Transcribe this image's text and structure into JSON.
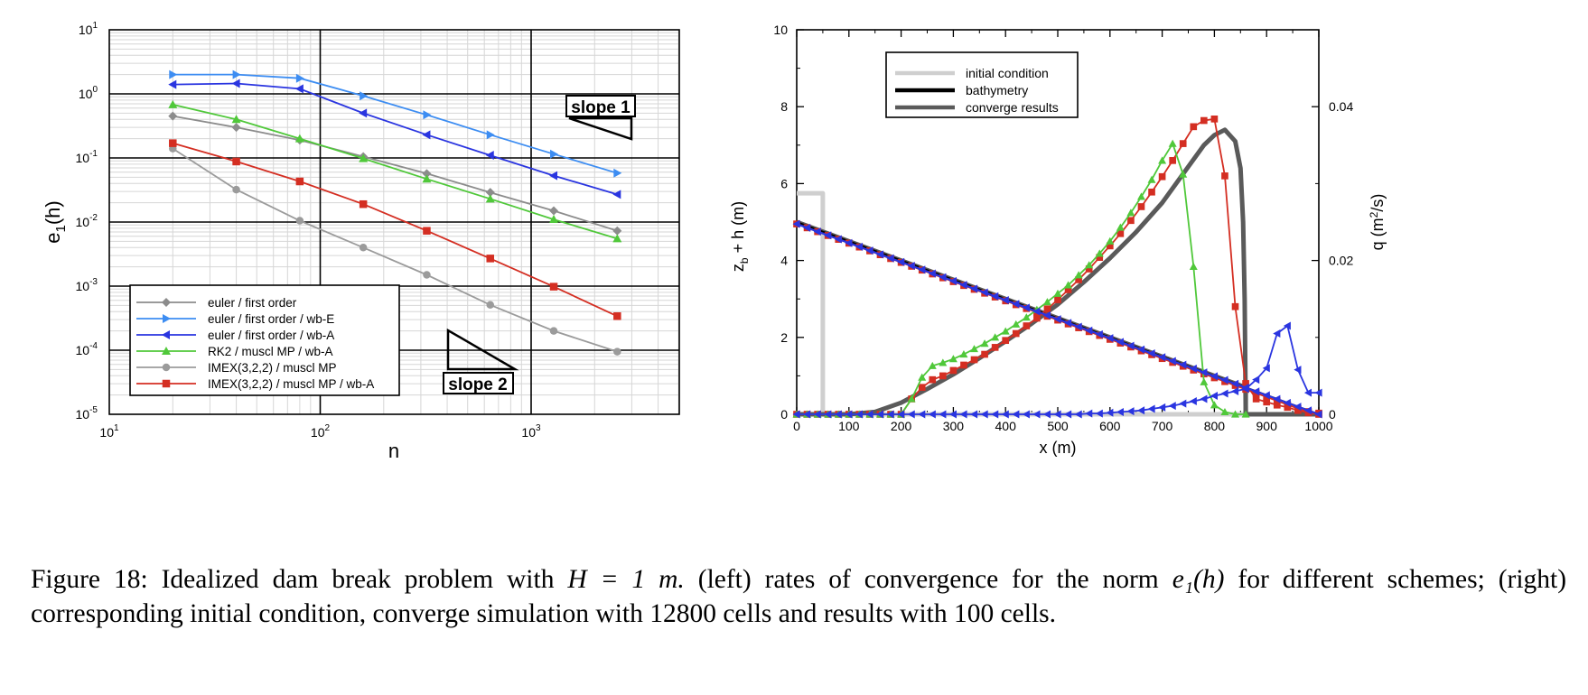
{
  "chart_data": [
    {
      "type": "line",
      "title": "",
      "xlabel": "n",
      "ylabel": "e1(h)",
      "xscale": "log",
      "yscale": "log",
      "xlim": [
        10,
        5000
      ],
      "ylim": [
        1e-05,
        10
      ],
      "x_ticks": [
        {
          "base": "10",
          "exp": "1"
        },
        {
          "base": "10",
          "exp": "2"
        },
        {
          "base": "10",
          "exp": "3"
        }
      ],
      "y_ticks": [
        {
          "base": "10",
          "exp": "1"
        },
        {
          "base": "10",
          "exp": "0"
        },
        {
          "base": "10",
          "exp": "-1"
        },
        {
          "base": "10",
          "exp": "-2"
        },
        {
          "base": "10",
          "exp": "-3"
        },
        {
          "base": "10",
          "exp": "-4"
        },
        {
          "base": "10",
          "exp": "-5"
        }
      ],
      "grid": true,
      "legend_position": "lower-left",
      "annotations": [
        "slope 1",
        "slope 2"
      ],
      "x": [
        20,
        40,
        80,
        160,
        320,
        640,
        1280,
        2560
      ],
      "series": [
        {
          "name": "euler / first order",
          "color": "#8c8c8c",
          "marker": "diamond",
          "values": [
            0.45,
            0.3,
            0.19,
            0.105,
            0.057,
            0.029,
            0.015,
            0.0073
          ]
        },
        {
          "name": "euler / first order / wb-E",
          "color": "#3d8df2",
          "marker": "triangle-right",
          "values": [
            2.0,
            2.0,
            1.75,
            0.93,
            0.47,
            0.23,
            0.115,
            0.058
          ]
        },
        {
          "name": "euler / first order / wb-A",
          "color": "#2a35e0",
          "marker": "triangle-left",
          "values": [
            1.4,
            1.45,
            1.2,
            0.5,
            0.23,
            0.11,
            0.053,
            0.027
          ]
        },
        {
          "name": "RK2 / muscl MP / wb-A",
          "color": "#50c83a",
          "marker": "triangle-up",
          "values": [
            0.68,
            0.4,
            0.2,
            0.098,
            0.047,
            0.023,
            0.011,
            0.0055
          ]
        },
        {
          "name": "IMEX(3,2,2) / muscl MP",
          "color": "#9b9b9b",
          "marker": "circle",
          "values": [
            0.14,
            0.032,
            0.0105,
            0.004,
            0.0015,
            0.00051,
            0.0002,
            9.5e-05
          ]
        },
        {
          "name": "IMEX(3,2,2) / muscl MP / wb-A",
          "color": "#d42e22",
          "marker": "square",
          "values": [
            0.17,
            0.088,
            0.043,
            0.019,
            0.0073,
            0.0027,
            0.00098,
            0.00034
          ]
        }
      ]
    },
    {
      "type": "line",
      "title": "",
      "xlabel": "x (m)",
      "ylabel": "zb + h (m)",
      "y2label": "q (m2/s)",
      "xlim": [
        0,
        1000
      ],
      "ylim": [
        0,
        10
      ],
      "y2lim": [
        0,
        0.05
      ],
      "x_ticks": [
        "0",
        "100",
        "200",
        "300",
        "400",
        "500",
        "600",
        "700",
        "800",
        "900",
        "1000"
      ],
      "y_ticks": [
        "0",
        "2",
        "4",
        "6",
        "8",
        "10"
      ],
      "y2_ticks": [
        "0",
        "0.02",
        "0.04"
      ],
      "grid": false,
      "legend_position": "top-left",
      "series": [
        {
          "name": "initial condition",
          "color": "#cfcfcf",
          "axis": "left",
          "x": [
            0,
            50,
            50,
            1000
          ],
          "y": [
            5.75,
            5.75,
            0,
            0
          ]
        },
        {
          "name": "bathymetry",
          "color": "#000000",
          "axis": "left",
          "x": [
            0,
            1000
          ],
          "y": [
            5.0,
            0
          ]
        },
        {
          "name": "converge results",
          "color": "#5a5a5a",
          "axis": "left",
          "x": [
            0,
            860,
            860,
            1000
          ],
          "y": [
            5.0,
            0.7,
            0,
            0
          ]
        },
        {
          "name": "converge results",
          "color": "#5a5a5a",
          "axis": "right",
          "x": [
            0,
            100,
            150,
            200,
            250,
            300,
            350,
            400,
            450,
            500,
            550,
            600,
            650,
            700,
            750,
            780,
            800,
            820,
            840,
            850,
            855,
            858,
            860,
            1000
          ],
          "y": [
            0,
            0,
            0.0003,
            0.0015,
            0.0033,
            0.0052,
            0.0073,
            0.0095,
            0.0118,
            0.0143,
            0.0172,
            0.0203,
            0.0237,
            0.0275,
            0.0322,
            0.035,
            0.0363,
            0.037,
            0.0355,
            0.032,
            0.025,
            0.015,
            0,
            0
          ]
        },
        {
          "name": "IMEX(3,2,2) / muscl MP / wb-A",
          "color": "#d42e22",
          "axis": "right",
          "marker": "square",
          "x": [
            0,
            20,
            40,
            60,
            80,
            100,
            120,
            140,
            160,
            180,
            200,
            220,
            240,
            260,
            280,
            300,
            320,
            340,
            360,
            380,
            400,
            420,
            440,
            460,
            480,
            500,
            520,
            540,
            560,
            580,
            600,
            620,
            640,
            660,
            680,
            700,
            720,
            740,
            760,
            780,
            800,
            820,
            840,
            860,
            880,
            900,
            920,
            940,
            960,
            980,
            1000
          ],
          "y": [
            0,
            0,
            0,
            0,
            0,
            0,
            0,
            0,
            0,
            0,
            0,
            0.002,
            0.0035,
            0.0045,
            0.005,
            0.0057,
            0.0064,
            0.0071,
            0.0078,
            0.0087,
            0.0096,
            0.0105,
            0.0115,
            0.0125,
            0.0137,
            0.0149,
            0.0162,
            0.0175,
            0.0189,
            0.0204,
            0.0219,
            0.0235,
            0.0252,
            0.027,
            0.0289,
            0.0309,
            0.033,
            0.0352,
            0.0374,
            0.0382,
            0.0384,
            0.031,
            0.014,
            0.004,
            0.002,
            0.0016,
            0.0012,
            0.0009,
            0.0005,
            0.0002,
            0
          ]
        },
        {
          "name": "IMEX(3,2,2) / muscl MP / wb-A",
          "color": "#d42e22",
          "axis": "left",
          "marker": "square",
          "x": [
            0,
            20,
            40,
            60,
            80,
            100,
            120,
            140,
            160,
            180,
            200,
            220,
            240,
            260,
            280,
            300,
            320,
            340,
            360,
            380,
            400,
            420,
            440,
            460,
            480,
            500,
            520,
            540,
            560,
            580,
            600,
            620,
            640,
            660,
            680,
            700,
            720,
            740,
            760,
            780,
            800,
            820,
            840,
            860,
            880,
            900,
            920,
            940,
            960,
            980,
            1000
          ],
          "y": [
            4.95,
            4.85,
            4.75,
            4.65,
            4.55,
            4.45,
            4.35,
            4.25,
            4.15,
            4.05,
            3.95,
            3.85,
            3.75,
            3.65,
            3.55,
            3.45,
            3.35,
            3.25,
            3.15,
            3.05,
            2.95,
            2.85,
            2.75,
            2.65,
            2.55,
            2.45,
            2.35,
            2.25,
            2.15,
            2.05,
            1.95,
            1.85,
            1.75,
            1.65,
            1.55,
            1.45,
            1.35,
            1.25,
            1.15,
            1.05,
            0.95,
            0.85,
            0.75,
            0.65,
            0.55,
            0.45,
            0.35,
            0.25,
            0.15,
            0.07,
            0.03
          ]
        },
        {
          "name": "RK2 / muscl MP / wb-A",
          "color": "#50c83a",
          "axis": "right",
          "marker": "triangle-up",
          "x": [
            0,
            20,
            40,
            60,
            80,
            100,
            120,
            140,
            160,
            180,
            200,
            220,
            240,
            260,
            280,
            300,
            320,
            340,
            360,
            380,
            400,
            420,
            440,
            460,
            480,
            500,
            520,
            540,
            560,
            580,
            600,
            620,
            640,
            660,
            680,
            700,
            720,
            740,
            760,
            780,
            800,
            820,
            840,
            860
          ],
          "y": [
            0,
            0,
            0,
            0,
            0,
            0,
            0,
            0,
            0,
            0,
            0,
            0.002,
            0.0048,
            0.0063,
            0.0067,
            0.0072,
            0.0078,
            0.0085,
            0.0092,
            0.01,
            0.0108,
            0.0117,
            0.0126,
            0.0136,
            0.0146,
            0.0157,
            0.0168,
            0.0181,
            0.0194,
            0.0209,
            0.0225,
            0.0243,
            0.0262,
            0.0283,
            0.0305,
            0.033,
            0.0352,
            0.0312,
            0.0192,
            0.0042,
            0.0012,
            0.0003,
            0,
            0
          ]
        },
        {
          "name": "euler / first order / wb-A",
          "color": "#2a35e0",
          "axis": "right",
          "marker": "triangle-left",
          "x": [
            0,
            20,
            40,
            60,
            80,
            100,
            120,
            140,
            160,
            180,
            200,
            220,
            240,
            260,
            280,
            300,
            320,
            340,
            360,
            380,
            400,
            420,
            440,
            460,
            480,
            500,
            520,
            540,
            560,
            580,
            600,
            620,
            640,
            660,
            680,
            700,
            720,
            740,
            760,
            780,
            800,
            820,
            840,
            860,
            880,
            900,
            920,
            940,
            960,
            980,
            1000
          ],
          "y": [
            0,
            0,
            0,
            0,
            0,
            0,
            0,
            0,
            0,
            0,
            0,
            0,
            0,
            0,
            0,
            0,
            0,
            0,
            0,
            0,
            0,
            0,
            0,
            0,
            0,
            0,
            0,
            0,
            0.0001,
            0.0001,
            0.0002,
            0.0003,
            0.0004,
            0.0005,
            0.0007,
            0.0009,
            0.0011,
            0.0014,
            0.0017,
            0.002,
            0.0024,
            0.0027,
            0.003,
            0.0033,
            0.0045,
            0.006,
            0.0105,
            0.0115,
            0.0058,
            0.0028,
            0.0028
          ]
        },
        {
          "name": "euler / first order / wb-A",
          "color": "#2a35e0",
          "axis": "left",
          "marker": "triangle-left",
          "x": [
            0,
            1000
          ],
          "y": [
            4.95,
            0
          ]
        }
      ]
    }
  ],
  "legend_left": [
    "euler / first order",
    "euler / first order / wb-E",
    "euler / first order / wb-A",
    "RK2 / muscl MP / wb-A",
    "IMEX(3,2,2) / muscl MP",
    "IMEX(3,2,2) / muscl MP / wb-A"
  ],
  "legend_right": [
    "initial condition",
    "bathymetry",
    "converge results"
  ],
  "caption": {
    "label": "Figure 18:",
    "text1": "Idealized dam break problem with",
    "math": "H = 1 m.",
    "text2": "(left) rates of convergence for the norm",
    "norm": "e₁(h)",
    "text3": "for different schemes; (right) corresponding initial condition, converge simulation with 12800 cells and results with 100 cells."
  }
}
